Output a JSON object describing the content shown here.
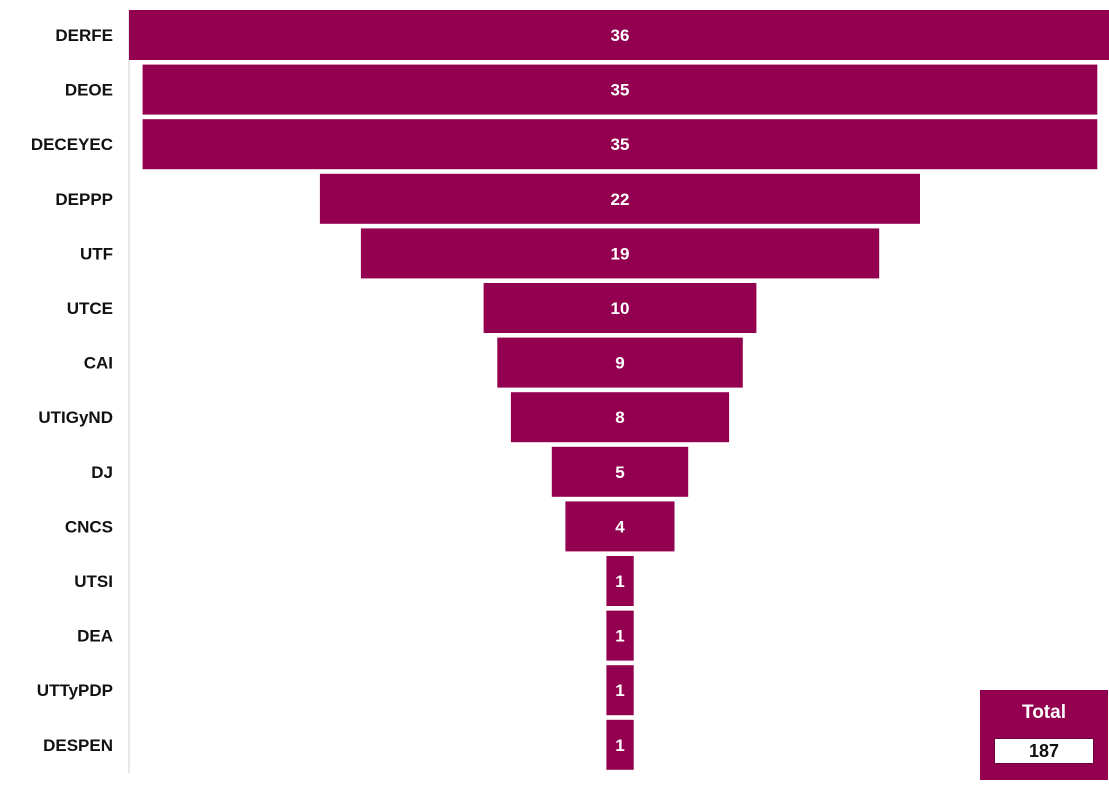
{
  "chart_data": {
    "type": "bar",
    "orientation": "horizontal-centered-funnel",
    "categories": [
      "DERFE",
      "DEOE",
      "DECEYEC",
      "DEPPP",
      "UTF",
      "UTCE",
      "CAI",
      "UTIGyND",
      "DJ",
      "CNCS",
      "UTSI",
      "DEA",
      "UTTyPDP",
      "DESPEN"
    ],
    "values": [
      36,
      35,
      35,
      22,
      19,
      10,
      9,
      8,
      5,
      4,
      1,
      1,
      1,
      1
    ],
    "bar_color": "#92004f",
    "grid": false,
    "legend": "none"
  },
  "total": {
    "label": "Total",
    "value": "187"
  }
}
